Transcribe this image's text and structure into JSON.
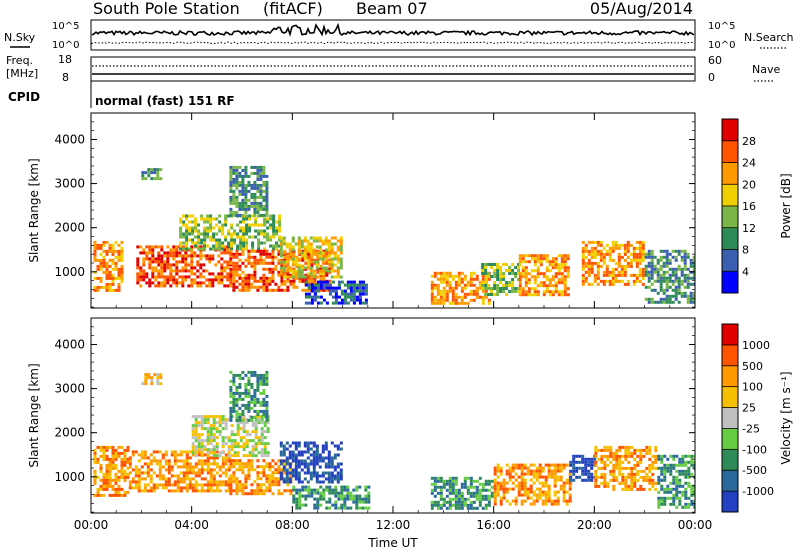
{
  "header": {
    "station": "South Pole Station",
    "processing": "(fitACF)",
    "beam": "Beam 07",
    "date": "05/Aug/2014"
  },
  "side_labels": {
    "nsky": "N.Sky",
    "nsky_ticks": [
      "10^5",
      "10^0"
    ],
    "nsearch": "N.Search",
    "nsearch_ticks": [
      "10^5",
      "10^0"
    ],
    "freq_line1": "Freq.",
    "freq_line2": "[MHz]",
    "freq_ticks": [
      "18",
      "8"
    ],
    "nave": "Nave",
    "nave_ticks": [
      "60",
      "0"
    ],
    "cpid": "CPID",
    "cpid_value": "normal (fast) 151 RF"
  },
  "chart_data": [
    {
      "type": "heatmap",
      "panel": "power",
      "ylabel": "Slant Range [km]",
      "xlabel": "",
      "x_ticks": [
        "00:00",
        "04:00",
        "08:00",
        "12:00",
        "16:00",
        "20:00",
        "00:00"
      ],
      "y_ticks": [
        1000,
        2000,
        3000,
        4000
      ],
      "xlim": [
        0,
        24
      ],
      "ylim": [
        180,
        4600
      ],
      "colorbar": {
        "label": "Power [dB]",
        "ticks": [
          "4",
          "8",
          "12",
          "16",
          "20",
          "24",
          "28"
        ],
        "colors": [
          "#0000ff",
          "#3b5fb0",
          "#2e8b57",
          "#7ab648",
          "#f0d000",
          "#ff9a00",
          "#ff5500",
          "#e00000"
        ]
      },
      "echo_regions": [
        {
          "t0": 0.1,
          "t1": 1.2,
          "r0": 600,
          "r1": 1700,
          "level": 5
        },
        {
          "t0": 1.8,
          "t1": 5.5,
          "r0": 700,
          "r1": 1600,
          "level": 6
        },
        {
          "t0": 2.0,
          "t1": 2.8,
          "r0": 3100,
          "r1": 3350,
          "level": 2
        },
        {
          "t0": 3.5,
          "t1": 7.5,
          "r0": 1500,
          "r1": 2300,
          "level": 3
        },
        {
          "t0": 5.5,
          "t1": 7.0,
          "r0": 2300,
          "r1": 3400,
          "level": 2
        },
        {
          "t0": 5.5,
          "t1": 9.5,
          "r0": 600,
          "r1": 1500,
          "level": 6
        },
        {
          "t0": 7.5,
          "t1": 10.0,
          "r0": 900,
          "r1": 1800,
          "level": 4
        },
        {
          "t0": 8.5,
          "t1": 11.0,
          "r0": 300,
          "r1": 800,
          "level": 1
        },
        {
          "t0": 13.5,
          "t1": 15.8,
          "r0": 300,
          "r1": 1000,
          "level": 5
        },
        {
          "t0": 15.5,
          "t1": 17.0,
          "r0": 500,
          "r1": 1200,
          "level": 3
        },
        {
          "t0": 17.0,
          "t1": 19.0,
          "r0": 500,
          "r1": 1400,
          "level": 5
        },
        {
          "t0": 19.5,
          "t1": 22.0,
          "r0": 700,
          "r1": 1700,
          "level": 5
        },
        {
          "t0": 22.0,
          "t1": 24.0,
          "r0": 300,
          "r1": 1500,
          "level": 2
        }
      ]
    },
    {
      "type": "heatmap",
      "panel": "velocity",
      "ylabel": "Slant Range [km]",
      "xlabel": "Time UT",
      "x_ticks": [
        "00:00",
        "04:00",
        "08:00",
        "12:00",
        "16:00",
        "20:00",
        "00:00"
      ],
      "y_ticks": [
        1000,
        2000,
        3000,
        4000
      ],
      "xlim": [
        0,
        24
      ],
      "ylim": [
        180,
        4600
      ],
      "colorbar": {
        "label": "Velocity [m s⁻¹]",
        "ticks": [
          "1000",
          "500",
          "100",
          "25",
          "-25",
          "-100",
          "-500",
          "-1000"
        ],
        "colors": [
          "#2240c0",
          "#2a6a9a",
          "#2e8b57",
          "#66cc44",
          "#c0c0c0",
          "#f5c000",
          "#ff9a00",
          "#ff5500",
          "#e00000"
        ]
      },
      "echo_regions": [
        {
          "t0": 0.1,
          "t1": 1.5,
          "r0": 600,
          "r1": 1700,
          "level": 6
        },
        {
          "t0": 1.5,
          "t1": 5.5,
          "r0": 700,
          "r1": 1600,
          "level": 6
        },
        {
          "t0": 2.0,
          "t1": 2.8,
          "r0": 3100,
          "r1": 3350,
          "level": 5
        },
        {
          "t0": 4.0,
          "t1": 7.0,
          "r0": 1500,
          "r1": 2400,
          "level": 4
        },
        {
          "t0": 5.5,
          "t1": 7.0,
          "r0": 2300,
          "r1": 3400,
          "level": 2
        },
        {
          "t0": 5.5,
          "t1": 8.0,
          "r0": 600,
          "r1": 1400,
          "level": 6
        },
        {
          "t0": 7.5,
          "t1": 10.0,
          "r0": 900,
          "r1": 1800,
          "level": 0
        },
        {
          "t0": 8.0,
          "t1": 11.0,
          "r0": 300,
          "r1": 800,
          "level": 2
        },
        {
          "t0": 13.5,
          "t1": 16.0,
          "r0": 300,
          "r1": 1000,
          "level": 2
        },
        {
          "t0": 16.0,
          "t1": 19.0,
          "r0": 400,
          "r1": 1300,
          "level": 6
        },
        {
          "t0": 19.0,
          "t1": 20.0,
          "r0": 900,
          "r1": 1500,
          "level": 0
        },
        {
          "t0": 20.0,
          "t1": 22.5,
          "r0": 700,
          "r1": 1700,
          "level": 6
        },
        {
          "t0": 22.5,
          "t1": 24.0,
          "r0": 300,
          "r1": 1500,
          "level": 2
        }
      ]
    }
  ]
}
